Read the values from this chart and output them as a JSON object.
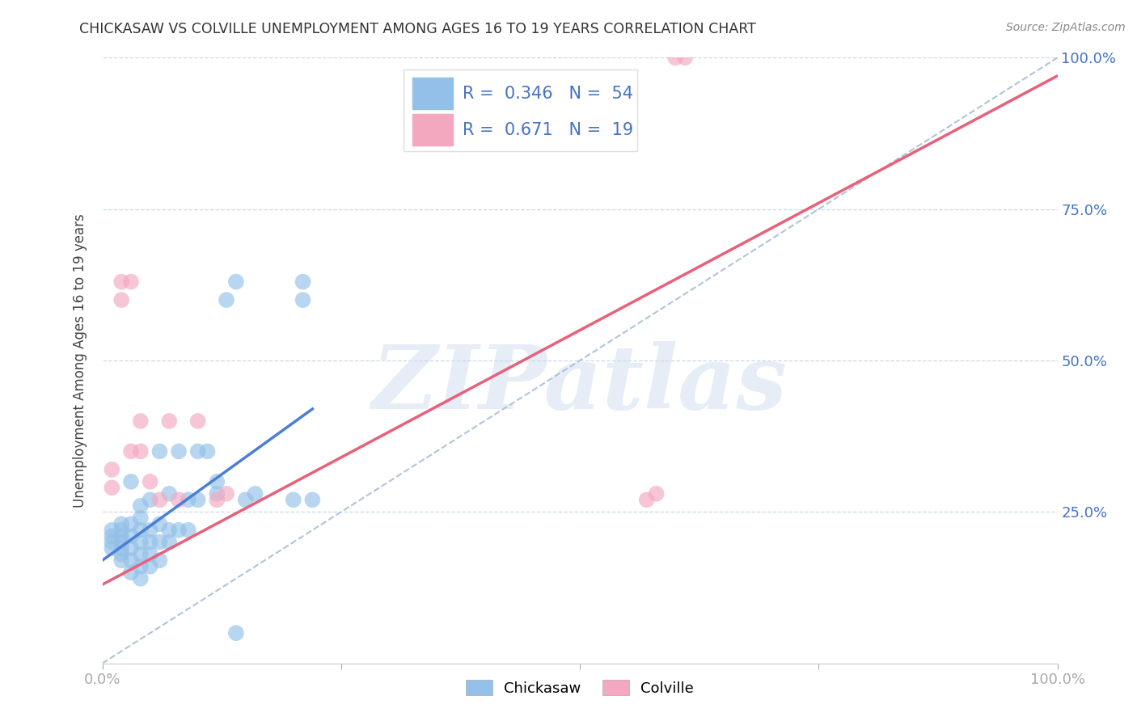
{
  "title": "CHICKASAW VS COLVILLE UNEMPLOYMENT AMONG AGES 16 TO 19 YEARS CORRELATION CHART",
  "source": "Source: ZipAtlas.com",
  "ylabel": "Unemployment Among Ages 16 to 19 years",
  "xlim": [
    0.0,
    1.0
  ],
  "ylim": [
    0.0,
    1.0
  ],
  "xtick_labels": [
    "0.0%",
    "",
    "",
    "",
    "100.0%"
  ],
  "ytick_right_labels": [
    "",
    "25.0%",
    "50.0%",
    "75.0%",
    "100.0%"
  ],
  "chickasaw_color": "#92c0e8",
  "colville_color": "#f4a8c0",
  "chickasaw_line_color": "#4a7fd4",
  "colville_line_color": "#e8607a",
  "diagonal_color": "#b0c4d8",
  "R_chickasaw": 0.346,
  "N_chickasaw": 54,
  "R_colville": 0.671,
  "N_colville": 19,
  "watermark": "ZIPatlas",
  "background_color": "#ffffff",
  "grid_color": "#c8d8e8",
  "tick_label_color": "#4472c4",
  "chickasaw_x": [
    0.01,
    0.01,
    0.01,
    0.01,
    0.02,
    0.02,
    0.02,
    0.02,
    0.02,
    0.02,
    0.02,
    0.03,
    0.03,
    0.03,
    0.03,
    0.03,
    0.03,
    0.04,
    0.04,
    0.04,
    0.04,
    0.04,
    0.04,
    0.04,
    0.05,
    0.05,
    0.05,
    0.05,
    0.05,
    0.06,
    0.06,
    0.06,
    0.06,
    0.07,
    0.07,
    0.07,
    0.08,
    0.08,
    0.09,
    0.09,
    0.1,
    0.1,
    0.11,
    0.12,
    0.12,
    0.13,
    0.14,
    0.15,
    0.16,
    0.2,
    0.21,
    0.21,
    0.22,
    0.14
  ],
  "chickasaw_y": [
    0.19,
    0.2,
    0.21,
    0.22,
    0.17,
    0.18,
    0.19,
    0.2,
    0.21,
    0.22,
    0.23,
    0.15,
    0.17,
    0.19,
    0.21,
    0.23,
    0.3,
    0.14,
    0.16,
    0.18,
    0.2,
    0.22,
    0.24,
    0.26,
    0.16,
    0.18,
    0.2,
    0.22,
    0.27,
    0.17,
    0.2,
    0.23,
    0.35,
    0.2,
    0.22,
    0.28,
    0.22,
    0.35,
    0.22,
    0.27,
    0.27,
    0.35,
    0.35,
    0.28,
    0.3,
    0.6,
    0.63,
    0.27,
    0.28,
    0.27,
    0.6,
    0.63,
    0.27,
    0.05
  ],
  "colville_x": [
    0.01,
    0.01,
    0.02,
    0.02,
    0.03,
    0.03,
    0.04,
    0.04,
    0.05,
    0.06,
    0.07,
    0.08,
    0.1,
    0.12,
    0.13,
    0.57,
    0.58,
    0.6,
    0.61
  ],
  "colville_y": [
    0.29,
    0.32,
    0.6,
    0.63,
    0.35,
    0.63,
    0.35,
    0.4,
    0.3,
    0.27,
    0.4,
    0.27,
    0.4,
    0.27,
    0.28,
    0.27,
    0.28,
    1.0,
    1.0
  ],
  "chickasaw_line_x": [
    0.0,
    0.22
  ],
  "chickasaw_line_y": [
    0.17,
    0.42
  ],
  "colville_line_x": [
    0.0,
    1.0
  ],
  "colville_line_y": [
    0.13,
    0.97
  ]
}
